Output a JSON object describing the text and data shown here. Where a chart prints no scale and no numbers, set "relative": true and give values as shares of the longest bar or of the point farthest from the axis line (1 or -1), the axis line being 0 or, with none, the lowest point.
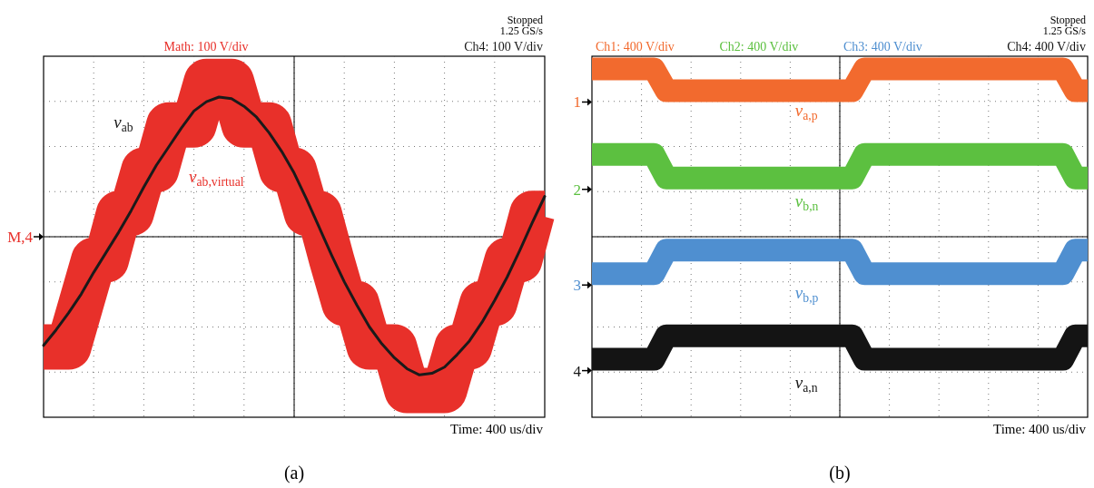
{
  "chart_data": [
    {
      "type": "step",
      "relative": true,
      "grid": true,
      "categories": [
        null,
        null,
        null,
        null,
        null,
        null,
        null,
        null,
        null,
        null,
        null,
        null,
        null,
        null,
        null,
        null,
        null,
        null,
        null,
        null,
        null,
        null,
        null,
        null,
        null,
        null,
        null,
        null,
        null,
        null,
        null,
        null,
        null,
        null,
        null,
        null,
        null,
        null,
        null,
        null,
        null
      ],
      "series": [
        {
          "name": "v$_{ab,virtual}$",
          "color": "#e8302a",
          "values": [
            -0.71,
            -0.71,
            -0.71,
            -0.43,
            -0.15,
            -0.15,
            0.15,
            0.15,
            0.43,
            0.43,
            0.72,
            0.72,
            0.72,
            1.0,
            1.0,
            1.0,
            0.72,
            0.72,
            0.72,
            0.43,
            0.43,
            0.15,
            0.15,
            -0.15,
            -0.43,
            -0.43,
            -0.71,
            -0.71,
            -0.71,
            -0.99,
            -0.99,
            -0.99,
            -0.99,
            -0.71,
            -0.71,
            -0.43,
            -0.43,
            -0.15,
            -0.15,
            0.15,
            0.15
          ]
        },
        {
          "name": "v$_{ab}$",
          "type": "line",
          "color": "#1a1a1a",
          "values": [
            -0.7,
            -0.6,
            -0.49,
            -0.37,
            -0.23,
            -0.1,
            0.03,
            0.17,
            0.32,
            0.46,
            0.58,
            0.7,
            0.81,
            0.87,
            0.9,
            0.89,
            0.84,
            0.77,
            0.67,
            0.55,
            0.41,
            0.24,
            0.06,
            -0.12,
            -0.29,
            -0.44,
            -0.58,
            -0.69,
            -0.78,
            -0.85,
            -0.89,
            -0.88,
            -0.84,
            -0.76,
            -0.67,
            -0.55,
            -0.41,
            -0.26,
            -0.09,
            0.09,
            0.26
          ]
        }
      ],
      "annotations": [
        "Math: 100 V/div",
        "Ch4: 100 V/div",
        "Stopped",
        "1.25 GS/s",
        "Time: 400 us/div",
        "(a)",
        "M,4"
      ]
    },
    {
      "type": "step",
      "relative": true,
      "grid": true,
      "categories": [
        null,
        null,
        null,
        null,
        null,
        null,
        null,
        null,
        null,
        null,
        null,
        null,
        null,
        null,
        null,
        null,
        null,
        null,
        null,
        null,
        null,
        null,
        null,
        null,
        null,
        null,
        null,
        null,
        null,
        null,
        null,
        null,
        null,
        null,
        null,
        null,
        null,
        null,
        null,
        null,
        null
      ],
      "series": [
        {
          "name": "v$_{a,p}$",
          "color": "#f26a2e",
          "values": [
            1.0,
            1.0,
            1.0,
            1.0,
            1.0,
            1.0,
            0.87,
            0.87,
            0.87,
            0.87,
            0.87,
            0.87,
            0.87,
            0.87,
            0.87,
            0.87,
            0.87,
            0.87,
            0.87,
            0.87,
            0.87,
            0.87,
            1.0,
            1.0,
            1.0,
            1.0,
            1.0,
            1.0,
            1.0,
            1.0,
            1.0,
            1.0,
            1.0,
            1.0,
            1.0,
            1.0,
            1.0,
            1.0,
            1.0,
            0.87,
            0.87
          ]
        },
        {
          "name": "v$_{b,n}$",
          "color": "#5cc040",
          "values": [
            0.49,
            0.49,
            0.49,
            0.49,
            0.49,
            0.49,
            0.35,
            0.35,
            0.35,
            0.35,
            0.35,
            0.35,
            0.35,
            0.35,
            0.35,
            0.35,
            0.35,
            0.35,
            0.35,
            0.35,
            0.35,
            0.35,
            0.49,
            0.49,
            0.49,
            0.49,
            0.49,
            0.49,
            0.49,
            0.49,
            0.49,
            0.49,
            0.49,
            0.49,
            0.49,
            0.49,
            0.49,
            0.49,
            0.49,
            0.35,
            0.35
          ]
        },
        {
          "name": "v$_{b,p}$",
          "color": "#4f8fd0",
          "values": [
            -0.22,
            -0.22,
            -0.22,
            -0.22,
            -0.22,
            -0.22,
            -0.08,
            -0.08,
            -0.08,
            -0.08,
            -0.08,
            -0.08,
            -0.08,
            -0.08,
            -0.08,
            -0.08,
            -0.08,
            -0.08,
            -0.08,
            -0.08,
            -0.08,
            -0.08,
            -0.22,
            -0.22,
            -0.22,
            -0.22,
            -0.22,
            -0.22,
            -0.22,
            -0.22,
            -0.22,
            -0.22,
            -0.22,
            -0.22,
            -0.22,
            -0.22,
            -0.22,
            -0.22,
            -0.22,
            -0.08,
            -0.08
          ]
        },
        {
          "name": "v$_{a,n}$",
          "color": "#141414",
          "values": [
            -0.73,
            -0.73,
            -0.73,
            -0.73,
            -0.73,
            -0.73,
            -0.59,
            -0.59,
            -0.59,
            -0.59,
            -0.59,
            -0.59,
            -0.59,
            -0.59,
            -0.59,
            -0.59,
            -0.59,
            -0.59,
            -0.59,
            -0.59,
            -0.59,
            -0.59,
            -0.73,
            -0.73,
            -0.73,
            -0.73,
            -0.73,
            -0.73,
            -0.73,
            -0.73,
            -0.73,
            -0.73,
            -0.73,
            -0.73,
            -0.73,
            -0.73,
            -0.73,
            -0.73,
            -0.73,
            -0.59,
            -0.59
          ]
        }
      ],
      "annotations": [
        "Ch1: 400 V/div",
        "Ch2: 400 V/div",
        "Ch3: 400 V/div",
        "Ch4: 400 V/div",
        "Stopped",
        "1.25 GS/s",
        "Time: 400 us/div",
        "(b)",
        "1",
        "2",
        "3",
        "4"
      ]
    }
  ]
}
